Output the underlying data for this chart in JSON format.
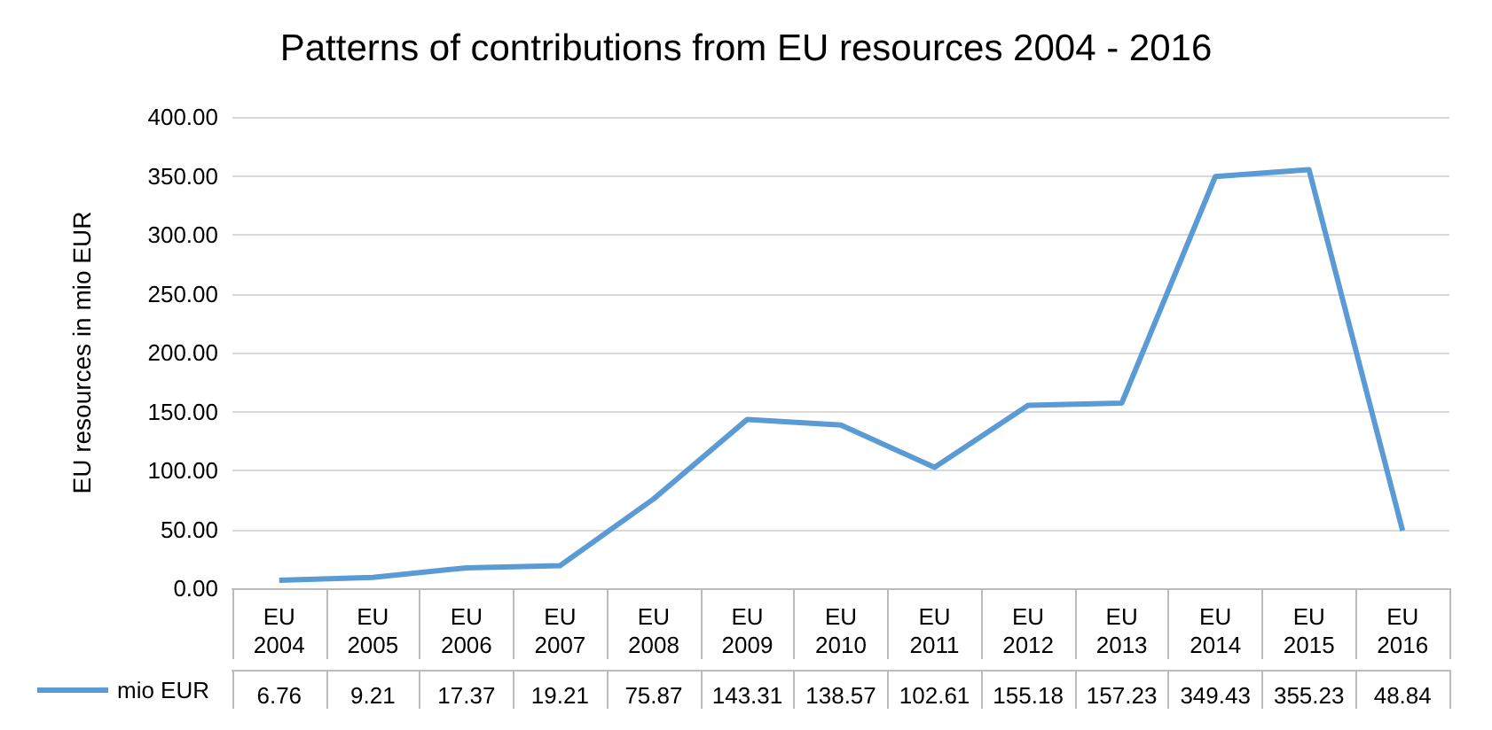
{
  "chart_data": {
    "type": "line",
    "title": "Patterns of contributions from EU resources 2004 - 2016",
    "ylabel": "EU resources in mio EUR",
    "categories": [
      "EU 2004",
      "EU 2005",
      "EU 2006",
      "EU 2007",
      "EU 2008",
      "EU 2009",
      "EU 2010",
      "EU 2011",
      "EU 2012",
      "EU 2013",
      "EU 2014",
      "EU 2015",
      "EU 2016"
    ],
    "series": [
      {
        "name": "mio EUR",
        "color": "#5b9bd5",
        "values": [
          6.76,
          9.21,
          17.37,
          19.21,
          75.87,
          143.31,
          138.57,
          102.61,
          155.18,
          157.23,
          349.43,
          355.23,
          48.84
        ]
      }
    ],
    "ylim": [
      0,
      400
    ],
    "yticks": [
      {
        "value": 0,
        "label": "0.00"
      },
      {
        "value": 50,
        "label": "50.00"
      },
      {
        "value": 100,
        "label": "100.00"
      },
      {
        "value": 150,
        "label": "150.00"
      },
      {
        "value": 200,
        "label": "200.00"
      },
      {
        "value": 250,
        "label": "250.00"
      },
      {
        "value": 300,
        "label": "300.00"
      },
      {
        "value": 350,
        "label": "350.00"
      },
      {
        "value": 400,
        "label": "400.00"
      }
    ],
    "grid": "y",
    "legend": "bottom left",
    "marker": "none",
    "data_labels": true
  }
}
